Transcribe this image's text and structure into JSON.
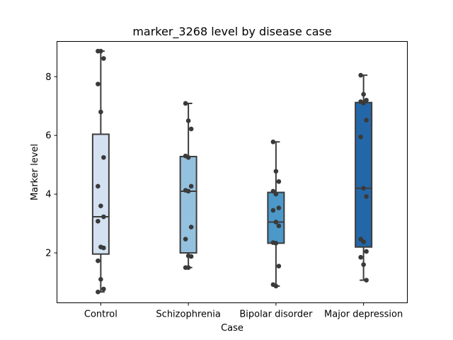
{
  "chart_data": {
    "type": "box",
    "title": "marker_3268 level by disease case",
    "xlabel": "Case",
    "ylabel": "Marker level",
    "ylim": [
      0.3,
      9.2
    ],
    "yticks": [
      "2",
      "4",
      "6",
      "8"
    ],
    "grid": false,
    "categories": [
      "Control",
      "Schizophrenia",
      "Bipolar disorder",
      "Major depression"
    ],
    "colors": [
      "#d3e1f1",
      "#94c1de",
      "#4b98c9",
      "#2467a8"
    ],
    "point_color": "#3a3a3a",
    "boxes": [
      {
        "min": 0.67,
        "q1": 1.96,
        "median": 3.23,
        "q3": 6.04,
        "max": 8.87
      },
      {
        "min": 1.5,
        "q1": 2.0,
        "median": 4.1,
        "q3": 5.28,
        "max": 7.09
      },
      {
        "min": 0.87,
        "q1": 2.33,
        "median": 3.05,
        "q3": 4.06,
        "max": 5.78
      },
      {
        "min": 1.07,
        "q1": 2.2,
        "median": 4.2,
        "q3": 7.12,
        "max": 8.05
      }
    ],
    "points": [
      [
        8.87,
        8.87,
        8.62,
        7.75,
        6.8,
        5.25,
        4.27,
        3.6,
        3.23,
        3.08,
        2.2,
        2.17,
        1.73,
        1.1,
        0.77,
        0.67
      ],
      [
        7.09,
        6.5,
        6.22,
        5.3,
        5.25,
        4.27,
        4.13,
        4.1,
        2.88,
        2.47,
        1.9,
        1.88,
        1.5,
        1.5
      ],
      [
        5.78,
        4.78,
        4.43,
        4.1,
        4.0,
        3.53,
        3.45,
        3.05,
        2.92,
        2.35,
        2.33,
        1.55,
        0.92,
        0.87
      ],
      [
        8.05,
        7.4,
        7.2,
        7.15,
        7.1,
        6.52,
        5.95,
        4.2,
        3.92,
        2.47,
        2.38,
        2.05,
        1.85,
        1.6,
        1.07
      ]
    ]
  }
}
